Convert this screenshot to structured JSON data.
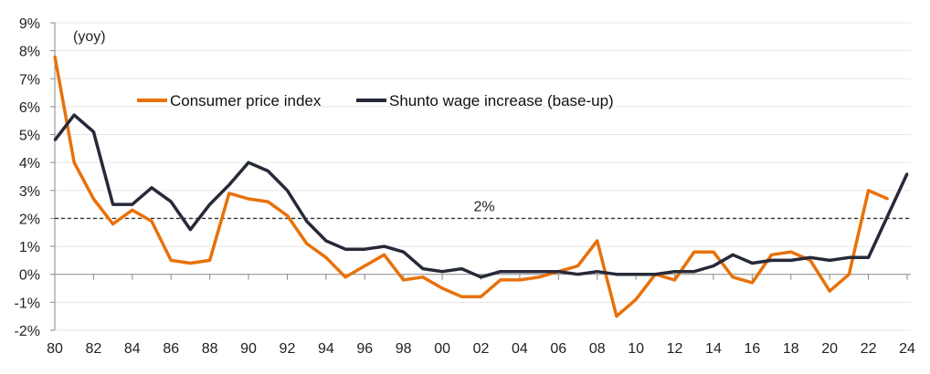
{
  "chart_data": {
    "type": "line",
    "title": "",
    "unit_note": "(yoy)",
    "xlabel": "",
    "ylabel": "",
    "x": [
      1980,
      1981,
      1982,
      1983,
      1984,
      1985,
      1986,
      1987,
      1988,
      1989,
      1990,
      1991,
      1992,
      1993,
      1994,
      1995,
      1996,
      1997,
      1998,
      1999,
      2000,
      2001,
      2002,
      2003,
      2004,
      2005,
      2006,
      2007,
      2008,
      2009,
      2010,
      2011,
      2012,
      2013,
      2014,
      2015,
      2016,
      2017,
      2018,
      2019,
      2020,
      2021,
      2022,
      2023,
      2024
    ],
    "xlim": [
      1980,
      2024
    ],
    "ylim": [
      -2,
      9
    ],
    "y_ticks": [
      -2,
      -1,
      0,
      1,
      2,
      3,
      4,
      5,
      6,
      7,
      8,
      9
    ],
    "y_tick_labels": [
      "-2%",
      "-1%",
      "0%",
      "1%",
      "2%",
      "3%",
      "4%",
      "5%",
      "6%",
      "7%",
      "8%",
      "9%"
    ],
    "x_ticks": [
      1980,
      1982,
      1984,
      1986,
      1988,
      1990,
      1992,
      1994,
      1996,
      1998,
      2000,
      2002,
      2004,
      2006,
      2008,
      2010,
      2012,
      2014,
      2016,
      2018,
      2020,
      2022,
      2024
    ],
    "x_tick_labels": [
      "80",
      "82",
      "84",
      "86",
      "88",
      "90",
      "92",
      "94",
      "96",
      "98",
      "00",
      "02",
      "04",
      "06",
      "08",
      "10",
      "12",
      "14",
      "16",
      "18",
      "20",
      "22",
      "24"
    ],
    "grid": true,
    "legend_position": "top-center",
    "series": [
      {
        "name": "Consumer price index",
        "color": "#E8710A",
        "values": [
          7.8,
          4.0,
          2.7,
          1.8,
          2.3,
          1.9,
          0.5,
          0.4,
          0.5,
          2.9,
          2.7,
          2.6,
          2.1,
          1.1,
          0.6,
          -0.1,
          0.3,
          0.7,
          -0.2,
          -0.1,
          -0.5,
          -0.8,
          -0.8,
          -0.2,
          -0.2,
          -0.1,
          0.1,
          0.3,
          1.2,
          -1.5,
          -0.9,
          0.0,
          -0.2,
          0.8,
          0.8,
          -0.1,
          -0.3,
          0.7,
          0.8,
          0.5,
          -0.6,
          0.0,
          3.0,
          2.7,
          null
        ]
      },
      {
        "name": "Shunto wage increase (base-up)",
        "color": "#262A38",
        "values": [
          4.8,
          5.7,
          5.1,
          2.5,
          2.5,
          3.1,
          2.6,
          1.6,
          2.5,
          3.2,
          4.0,
          3.7,
          3.0,
          1.9,
          1.2,
          0.9,
          0.9,
          1.0,
          0.8,
          0.2,
          0.1,
          0.2,
          -0.1,
          0.1,
          0.1,
          0.1,
          0.1,
          0.0,
          0.1,
          0.0,
          0.0,
          0.0,
          0.1,
          0.1,
          0.3,
          0.7,
          0.4,
          0.5,
          0.5,
          0.6,
          0.5,
          0.6,
          0.6,
          2.1,
          3.6
        ]
      }
    ],
    "reference_line": {
      "value": 2,
      "label": "2%",
      "style": "dashed",
      "color": "#333333"
    }
  }
}
